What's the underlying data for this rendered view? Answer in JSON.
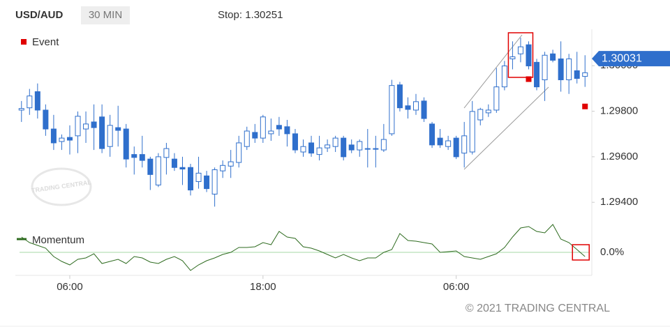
{
  "header": {
    "symbol": "USD/AUD",
    "interval": "30 MIN",
    "stop_label": "Stop:",
    "stop": 1.30251
  },
  "chart_data": [
    {
      "type": "candlestick",
      "legend": "Event",
      "xlim": [
        -0.5,
        70.5
      ],
      "ylim": [
        1.2937,
        1.3016
      ],
      "yticks": [
        {
          "value": 1.294,
          "label": "1.29400"
        },
        {
          "value": 1.296,
          "label": "1.29600"
        },
        {
          "value": 1.298,
          "label": "1.29800"
        },
        {
          "value": 1.3,
          "label": "1.30000"
        }
      ],
      "open": [
        1.29805,
        1.29815,
        1.29886,
        1.29805,
        1.29722,
        1.29667,
        1.29685,
        1.29692,
        1.29722,
        1.29753,
        1.29775,
        1.29645,
        1.29728,
        1.29722,
        1.2961,
        1.2961,
        1.2959,
        1.29476,
        1.29597,
        1.2959,
        1.29553,
        1.29553,
        1.29491,
        1.29516,
        1.29436,
        1.29538,
        1.29559,
        1.29575,
        1.29645,
        1.29707,
        1.29682,
        1.29701,
        1.29738,
        1.29732,
        1.29701,
        1.29621,
        1.29661,
        1.2961,
        1.29639,
        1.29645,
        1.29682,
        1.29652,
        1.2963,
        1.29636,
        1.29636,
        1.2963,
        1.29701,
        1.29916,
        1.29824,
        1.29805,
        1.29845,
        1.29744,
        1.29682,
        1.29645,
        1.29682,
        1.29616,
        1.29621,
        1.29762,
        1.29793,
        1.29805,
        1.29907,
        1.3003,
        1.30052,
        1.30092,
        1.30015,
        1.29938,
        1.30052,
        1.3003,
        1.29938,
        1.29978,
        1.29953
      ],
      "high": [
        1.29845,
        1.29898,
        1.29922,
        1.2983,
        1.29784,
        1.29698,
        1.29738,
        1.29799,
        1.29799,
        1.2983,
        1.2983,
        1.29784,
        1.29824,
        1.29744,
        1.29645,
        1.29692,
        1.296,
        1.29616,
        1.29661,
        1.29616,
        1.296,
        1.29569,
        1.296,
        1.29538,
        1.29553,
        1.29584,
        1.2963,
        1.29692,
        1.29732,
        1.29744,
        1.29784,
        1.29768,
        1.29775,
        1.29762,
        1.29722,
        1.29676,
        1.29692,
        1.29692,
        1.29676,
        1.29692,
        1.29692,
        1.29676,
        1.29676,
        1.29722,
        1.29692,
        1.29744,
        1.29938,
        1.29929,
        1.29861,
        1.29876,
        1.29861,
        1.29753,
        1.29722,
        1.29692,
        1.29692,
        1.29753,
        1.29845,
        1.29815,
        1.2983,
        1.2999,
        1.30021,
        1.30107,
        1.30123,
        1.30107,
        1.3003,
        1.30061,
        1.3007,
        1.30107,
        1.30052,
        1.30061,
        1.30046
      ],
      "low": [
        1.29753,
        1.29784,
        1.29768,
        1.29692,
        1.2963,
        1.2963,
        1.2961,
        1.29616,
        1.29661,
        1.2963,
        1.29616,
        1.296,
        1.29645,
        1.29553,
        1.29522,
        1.29553,
        1.29454,
        1.29467,
        1.29522,
        1.29538,
        1.29476,
        1.2943,
        1.2946,
        1.29445,
        1.29381,
        1.29507,
        1.29507,
        1.29553,
        1.2963,
        1.29661,
        1.29661,
        1.2967,
        1.29692,
        1.29645,
        1.29616,
        1.296,
        1.296,
        1.29584,
        1.29621,
        1.29621,
        1.29584,
        1.29616,
        1.296,
        1.29553,
        1.29553,
        1.29621,
        1.29692,
        1.29799,
        1.29768,
        1.29784,
        1.29753,
        1.29639,
        1.29639,
        1.2963,
        1.2959,
        1.29553,
        1.2961,
        1.29738,
        1.29775,
        1.29793,
        1.29892,
        1.29984,
        1.30015,
        1.29984,
        1.29892,
        1.29845,
        1.30015,
        1.29886,
        1.29876,
        1.29922,
        1.29907
      ],
      "close": [
        1.29812,
        1.29867,
        1.29805,
        1.29722,
        1.29661,
        1.29682,
        1.29673,
        1.29778,
        1.29744,
        1.29728,
        1.29636,
        1.29738,
        1.29716,
        1.2959,
        1.29597,
        1.29584,
        1.29522,
        1.296,
        1.29636,
        1.29553,
        1.29546,
        1.29454,
        1.29528,
        1.2946,
        1.29543,
        1.29562,
        1.29578,
        1.29661,
        1.29713,
        1.29682,
        1.29775,
        1.29713,
        1.29722,
        1.29701,
        1.2963,
        1.29645,
        1.29616,
        1.29639,
        1.29652,
        1.29682,
        1.296,
        1.2963,
        1.29667,
        1.29633,
        1.29633,
        1.29676,
        1.29913,
        1.29815,
        1.29808,
        1.29842,
        1.29768,
        1.29652,
        1.29652,
        1.2967,
        1.296,
        1.29692,
        1.29799,
        1.29808,
        1.29805,
        1.29907,
        1.29999,
        1.30039,
        1.30083,
        1.29999,
        1.29907,
        1.30046,
        1.30024,
        1.29938,
        1.3003,
        1.29944,
        1.29969
      ],
      "up_color": "#ffffff",
      "down_color": "#2f6fcc",
      "wick_color": "#2f6fcc",
      "events": [
        {
          "index": 63,
          "value": 1.29941
        },
        {
          "index": 70,
          "value": 1.29821
        }
      ],
      "event_color": "#e00000",
      "last_price": 1.30031,
      "last_price_color": "#2f6fcc"
    },
    {
      "type": "line",
      "name": "Momentum",
      "color": "#2e6b1f",
      "zero_line_color": "#a6d8a6",
      "xlim": [
        -0.5,
        70.5
      ],
      "ylim": [
        -0.33,
        0.44
      ],
      "yticks": [
        {
          "value": 0,
          "label": "0.0%"
        }
      ],
      "xticks": [
        {
          "value": 6,
          "label": "06:00"
        },
        {
          "value": 30,
          "label": "18:00"
        },
        {
          "value": 54,
          "label": "06:00"
        }
      ],
      "values": [
        0.22,
        0.14,
        0.1,
        0.06,
        -0.06,
        -0.13,
        -0.18,
        -0.1,
        -0.08,
        -0.02,
        -0.16,
        -0.13,
        -0.1,
        -0.16,
        -0.06,
        -0.08,
        -0.14,
        -0.16,
        -0.1,
        -0.06,
        -0.12,
        -0.26,
        -0.18,
        -0.12,
        -0.08,
        -0.03,
        0,
        0.07,
        0.07,
        0.08,
        0.14,
        0.11,
        0.3,
        0.22,
        0.2,
        0.08,
        0.06,
        0.02,
        -0.03,
        -0.08,
        -0.03,
        -0.08,
        -0.12,
        -0.08,
        -0.08,
        0,
        0.04,
        0.27,
        0.17,
        0.16,
        0.14,
        0.12,
        0,
        0.01,
        0.02,
        -0.06,
        -0.08,
        -0.1,
        -0.06,
        -0.02,
        0.07,
        0.22,
        0.35,
        0.37,
        0.3,
        0.28,
        0.4,
        0.19,
        0.14,
        0.04,
        -0.06
      ]
    }
  ],
  "watermark": "TRADING CENTRAL",
  "copyright": "© 2021 TRADING CENTRAL"
}
